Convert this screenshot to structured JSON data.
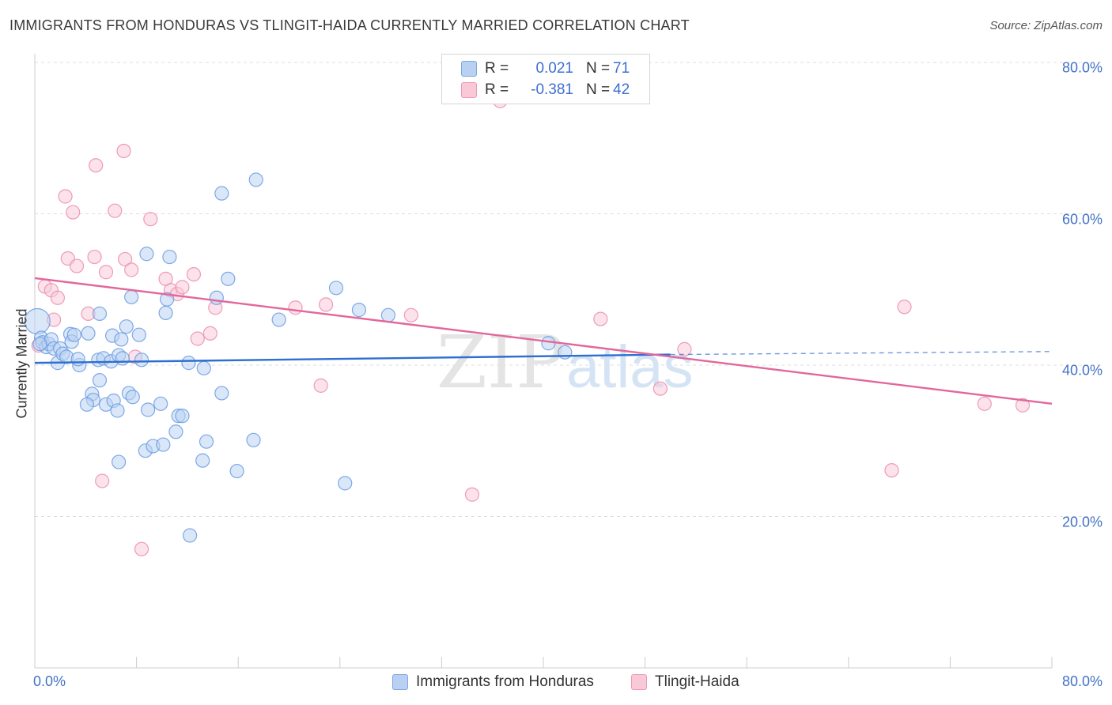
{
  "header": {
    "title": "IMMIGRANTS FROM HONDURAS VS TLINGIT-HAIDA CURRENTLY MARRIED CORRELATION CHART",
    "source": "Source: ZipAtlas.com"
  },
  "legend": {
    "row1": {
      "r_label": "R =",
      "r_value": "0.021",
      "n_label": "N =",
      "n_value": "71"
    },
    "row2": {
      "r_label": "R =",
      "r_value": "-0.381",
      "n_label": "N =",
      "n_value": "42"
    }
  },
  "watermark": {
    "part1": "ZIP",
    "part2": "atlas"
  },
  "colors": {
    "series1": "#6a9be0",
    "series1_fill": "#bcd3f3",
    "series1_line": "#2e6fcf",
    "series2": "#ec8cab",
    "series2_fill": "#f8cadb",
    "series2_line": "#e2679a",
    "grid": "#dedede",
    "axis_text": "#4472c4"
  },
  "chart_data": {
    "type": "scatter",
    "title": "IMMIGRANTS FROM HONDURAS VS TLINGIT-HAIDA CURRENTLY MARRIED CORRELATION CHART",
    "xlabel": "",
    "ylabel": "Currently Married",
    "xlim": [
      0,
      80
    ],
    "ylim": [
      0,
      82
    ],
    "x_tick_labels": [
      "0.0%",
      "80.0%"
    ],
    "y_ticks": [
      20,
      40,
      60,
      80
    ],
    "y_tick_labels": [
      "20.0%",
      "40.0%",
      "60.0%",
      "80.0%"
    ],
    "grid": true,
    "legend_position": "top-center",
    "series": [
      {
        "name": "Immigrants from Honduras",
        "r": 0.021,
        "n": 71,
        "trend": {
          "x": [
            0,
            50
          ],
          "y": [
            40.3,
            41.4
          ],
          "dashed_to": [
            80,
            41.8
          ]
        },
        "points": [
          [
            0.2,
            45.8
          ],
          [
            0.5,
            43.6
          ],
          [
            0.6,
            43.0
          ],
          [
            0.9,
            42.4
          ],
          [
            1.1,
            42.8
          ],
          [
            1.3,
            43.4
          ],
          [
            1.5,
            42.2
          ],
          [
            1.8,
            40.3
          ],
          [
            2.0,
            42.2
          ],
          [
            2.2,
            41.5
          ],
          [
            2.5,
            41.1
          ],
          [
            2.8,
            44.1
          ],
          [
            2.9,
            43.1
          ],
          [
            3.1,
            44.0
          ],
          [
            3.5,
            40.0
          ],
          [
            3.4,
            40.8
          ],
          [
            4.2,
            44.2
          ],
          [
            4.5,
            36.2
          ],
          [
            4.6,
            35.4
          ],
          [
            4.1,
            34.8
          ],
          [
            5.0,
            40.7
          ],
          [
            5.1,
            38.0
          ],
          [
            5.1,
            46.8
          ],
          [
            5.4,
            40.9
          ],
          [
            5.6,
            34.8
          ],
          [
            6.0,
            40.5
          ],
          [
            6.1,
            43.9
          ],
          [
            6.2,
            35.3
          ],
          [
            6.5,
            34.0
          ],
          [
            6.6,
            41.3
          ],
          [
            6.6,
            27.2
          ],
          [
            6.8,
            43.4
          ],
          [
            7.2,
            45.1
          ],
          [
            7.4,
            36.3
          ],
          [
            7.6,
            49.0
          ],
          [
            7.7,
            35.8
          ],
          [
            8.2,
            44.0
          ],
          [
            8.4,
            40.7
          ],
          [
            8.7,
            28.7
          ],
          [
            8.8,
            54.7
          ],
          [
            8.9,
            34.1
          ],
          [
            9.3,
            29.3
          ],
          [
            9.9,
            34.9
          ],
          [
            10.1,
            29.5
          ],
          [
            10.3,
            46.9
          ],
          [
            10.4,
            48.7
          ],
          [
            10.6,
            54.3
          ],
          [
            11.1,
            31.2
          ],
          [
            11.3,
            33.3
          ],
          [
            11.6,
            33.3
          ],
          [
            12.1,
            40.3
          ],
          [
            12.2,
            17.5
          ],
          [
            13.2,
            27.4
          ],
          [
            13.3,
            39.6
          ],
          [
            13.5,
            29.9
          ],
          [
            14.3,
            48.9
          ],
          [
            14.7,
            36.3
          ],
          [
            14.7,
            62.7
          ],
          [
            15.2,
            51.4
          ],
          [
            15.9,
            26.0
          ],
          [
            17.2,
            30.1
          ],
          [
            17.4,
            64.5
          ],
          [
            19.2,
            46.0
          ],
          [
            23.7,
            50.2
          ],
          [
            24.4,
            24.4
          ],
          [
            25.5,
            47.3
          ],
          [
            27.8,
            46.6
          ],
          [
            40.4,
            42.9
          ],
          [
            41.7,
            41.7
          ],
          [
            0.4,
            42.8
          ],
          [
            6.9,
            40.9
          ]
        ]
      },
      {
        "name": "Tlingit-Haida",
        "r": -0.381,
        "n": 42,
        "trend": {
          "x": [
            0,
            80
          ],
          "y": [
            51.5,
            34.9
          ]
        },
        "points": [
          [
            0.3,
            42.6
          ],
          [
            0.8,
            50.4
          ],
          [
            1.3,
            49.9
          ],
          [
            1.5,
            46.0
          ],
          [
            1.8,
            48.9
          ],
          [
            2.4,
            62.3
          ],
          [
            2.6,
            54.1
          ],
          [
            3.0,
            60.2
          ],
          [
            3.3,
            53.1
          ],
          [
            4.2,
            46.8
          ],
          [
            4.7,
            54.3
          ],
          [
            4.8,
            66.4
          ],
          [
            5.3,
            24.7
          ],
          [
            5.6,
            52.3
          ],
          [
            6.3,
            60.4
          ],
          [
            7.1,
            54.0
          ],
          [
            7.0,
            68.3
          ],
          [
            7.6,
            52.6
          ],
          [
            7.9,
            41.1
          ],
          [
            8.4,
            15.7
          ],
          [
            9.1,
            59.3
          ],
          [
            10.3,
            51.4
          ],
          [
            10.7,
            49.9
          ],
          [
            11.2,
            49.4
          ],
          [
            11.6,
            50.3
          ],
          [
            12.5,
            52.0
          ],
          [
            12.8,
            43.5
          ],
          [
            13.8,
            44.2
          ],
          [
            14.2,
            47.6
          ],
          [
            20.5,
            47.6
          ],
          [
            22.5,
            37.3
          ],
          [
            22.9,
            48.0
          ],
          [
            29.6,
            46.6
          ],
          [
            34.4,
            22.9
          ],
          [
            36.6,
            74.9
          ],
          [
            44.5,
            46.1
          ],
          [
            49.2,
            36.9
          ],
          [
            51.1,
            42.1
          ],
          [
            67.4,
            26.1
          ],
          [
            68.4,
            47.7
          ],
          [
            74.7,
            34.9
          ],
          [
            77.7,
            34.7
          ]
        ]
      }
    ]
  }
}
